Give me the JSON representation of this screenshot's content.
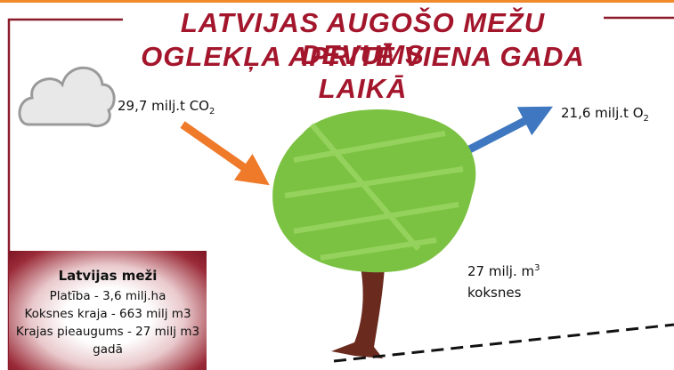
{
  "header": {
    "title_lines": [
      "LATVIJAS AUGOŠO MEŽU DEVUMS",
      "OGLEKĻA APRITĒ VIENA GADA LAIKĀ"
    ]
  },
  "co2_label": {
    "text": "29,7 milj.t CO",
    "sub": "2"
  },
  "o2_label": {
    "text": "21,6 milj.t O",
    "sub": "2"
  },
  "wood_label": {
    "text": "27 milj. m",
    "sup": "3",
    "line2": "koksnes"
  },
  "info_box": {
    "title": "Latvijas meži",
    "lines": [
      "Platība - 3,6 milj.ha",
      "Koksnes kraja - 663 milj m3",
      "Krajas pieaugums - 27 milj m3 gadā"
    ]
  }
}
